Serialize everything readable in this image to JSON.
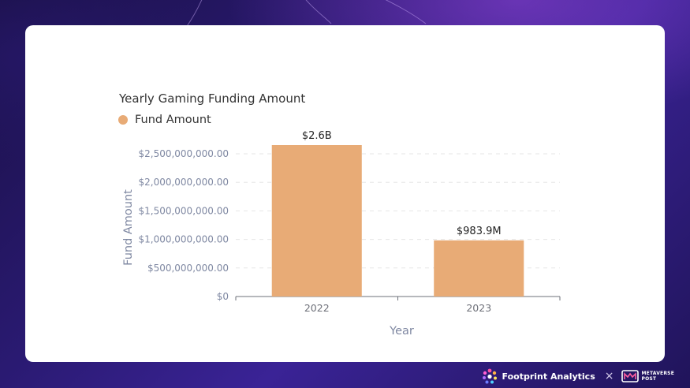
{
  "chart_data": {
    "type": "bar",
    "title": "Yearly Gaming Funding Amount",
    "legend": {
      "entries": [
        "Fund Amount"
      ],
      "placement": "top-left"
    },
    "series": [
      {
        "name": "Fund Amount",
        "color": "#e8ab76",
        "values": [
          2600000000,
          983900000
        ]
      }
    ],
    "categories": [
      "2022",
      "2023"
    ],
    "data_labels": [
      "$2.6B",
      "$983.9M"
    ],
    "xlabel": "Year",
    "ylabel": "Fund Amount",
    "ylim": [
      0,
      2500000000
    ],
    "yticks": [
      0,
      500000000,
      1000000000,
      1500000000,
      2000000000,
      2500000000
    ],
    "ytick_labels": [
      "$0",
      "$500,000,000.00",
      "$1,000,000,000.00",
      "$1,500,000,000.00",
      "$2,000,000,000.00",
      "$2,500,000,000.00"
    ],
    "grid": true
  },
  "footer": {
    "brand": "Footprint Analytics",
    "separator": "×",
    "partner_line1": "METAVERSE",
    "partner_line2": "POST"
  },
  "colors": {
    "bar": "#e8ab76",
    "accent": "#3a2396"
  }
}
